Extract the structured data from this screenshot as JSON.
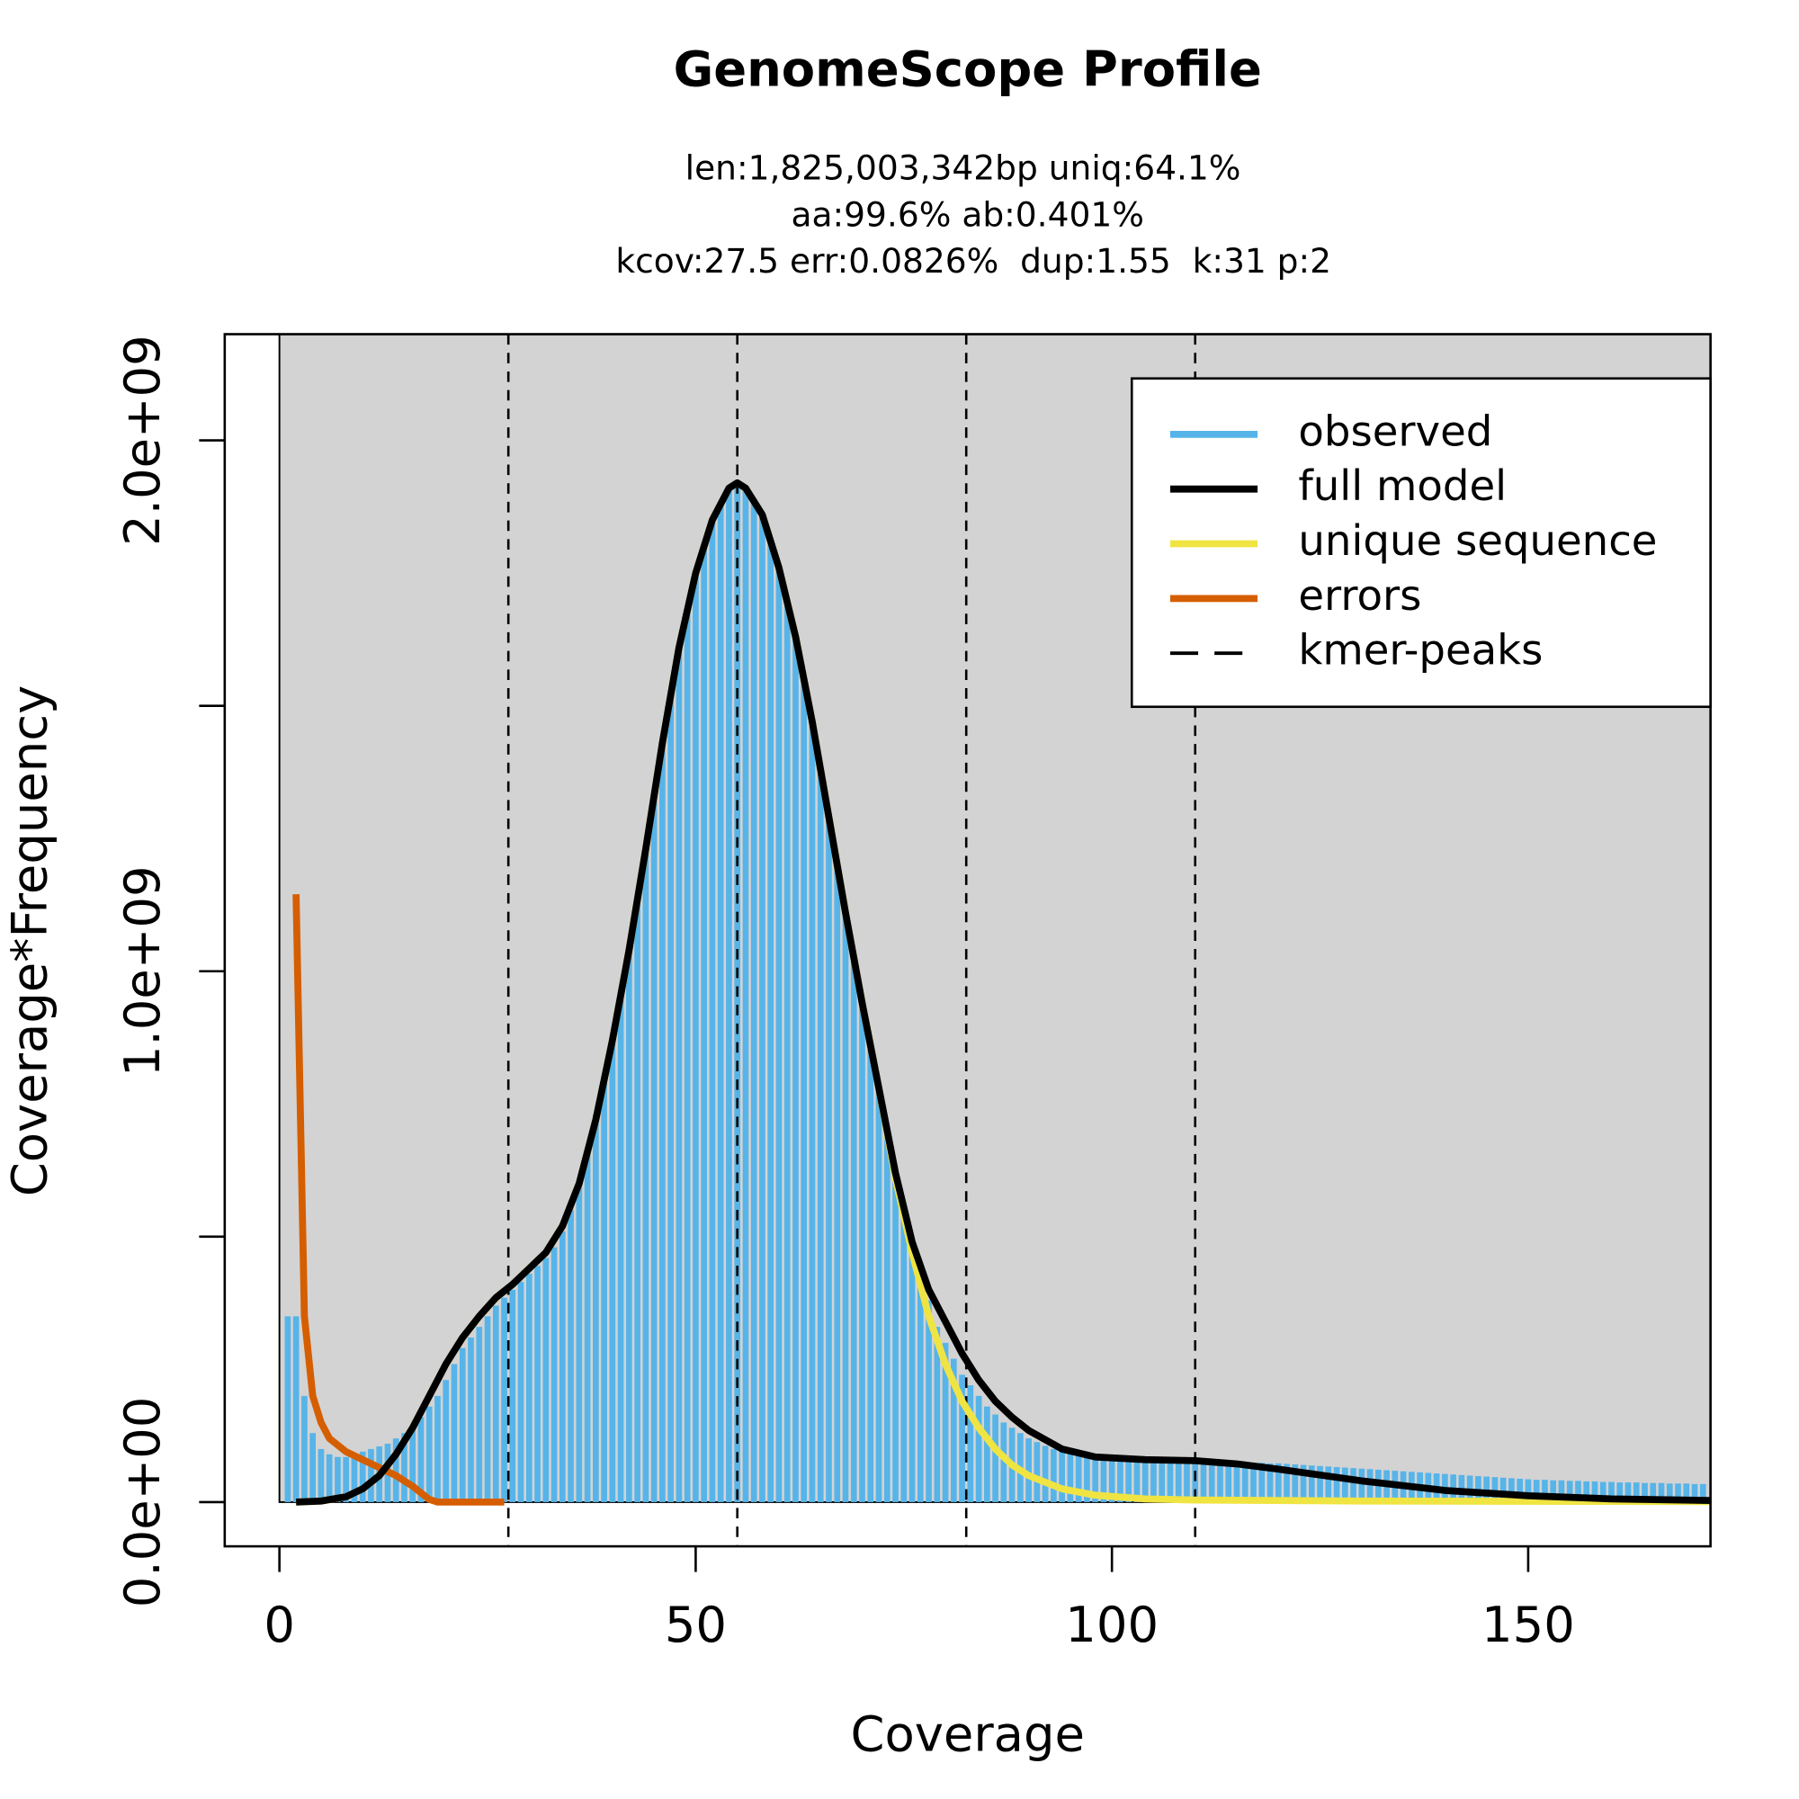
{
  "chart_data": {
    "type": "genomescope",
    "title": "GenomeScope Profile",
    "subtitle": [
      "len:1,825,003,342bp uniq:64.1%",
      "aa:99.6% ab:0.401%",
      "kcov:27.5 err:0.0826%  dup:1.55  k:31 p:2"
    ],
    "x_label": "Coverage",
    "y_label": "Coverage*Frequency",
    "xlim": [
      -6.57,
      171.9
    ],
    "ylim": [
      -83300000,
      2200000000
    ],
    "xticks": [
      0,
      50,
      100,
      150
    ],
    "yticks": [
      {
        "value": 0,
        "label": "0.0e+00"
      },
      {
        "value": 500000000,
        "label": null
      },
      {
        "value": 1000000000,
        "label": "1.0e+09"
      },
      {
        "value": 1500000000,
        "label": null
      },
      {
        "value": 2000000000,
        "label": "2.0e+09"
      }
    ],
    "background": "#d3d3d3",
    "legend": "top-right",
    "series": [
      {
        "name": "observed",
        "type": "bar",
        "color": "#56B4E9",
        "x": [
          1,
          2,
          3,
          4,
          5,
          6,
          7,
          8,
          9,
          10,
          11,
          12,
          13,
          14,
          15,
          16,
          17,
          18,
          19,
          20,
          21,
          22,
          23,
          24,
          25,
          26,
          27,
          28,
          29,
          30,
          31,
          32,
          33,
          34,
          35,
          36,
          37,
          38,
          39,
          40,
          41,
          42,
          43,
          44,
          45,
          46,
          47,
          48,
          49,
          50,
          51,
          52,
          53,
          54,
          55,
          56,
          57,
          58,
          59,
          60,
          61,
          62,
          63,
          64,
          65,
          66,
          67,
          68,
          69,
          70,
          71,
          72,
          73,
          74,
          75,
          76,
          77,
          78,
          79,
          80,
          81,
          82,
          83,
          84,
          85,
          86,
          87,
          88,
          89,
          90,
          91,
          92,
          93,
          94,
          95,
          96,
          97,
          98,
          99,
          100,
          101,
          102,
          103,
          104,
          105,
          106,
          107,
          108,
          109,
          110,
          111,
          112,
          113,
          114,
          115,
          116,
          117,
          118,
          119,
          120,
          121,
          122,
          123,
          124,
          125,
          126,
          127,
          128,
          129,
          130,
          131,
          132,
          133,
          134,
          135,
          136,
          137,
          138,
          139,
          140,
          141,
          142,
          143,
          144,
          145,
          146,
          147,
          148,
          149,
          150,
          151,
          152,
          153,
          154,
          155,
          156,
          157,
          158,
          159,
          160,
          161,
          162,
          163,
          164,
          165,
          166,
          167,
          168,
          169,
          170,
          171
        ],
        "values": [
          350000000.0,
          350000000.0,
          200000000.0,
          130000000.0,
          100000000.0,
          90000000.0,
          85000000.0,
          85000000.0,
          90000000.0,
          95000000.0,
          100000000.0,
          105000000.0,
          110000000.0,
          120000000.0,
          130000000.0,
          145000000.0,
          160000000.0,
          180000000.0,
          200000000.0,
          230000000.0,
          260000000.0,
          290000000.0,
          310000000.0,
          330000000.0,
          350000000.0,
          370000000.0,
          385000000.0,
          400000000.0,
          415000000.0,
          430000000.0,
          445000000.0,
          460000000.0,
          480000000.0,
          510000000.0,
          550000000.0,
          600000000.0,
          660000000.0,
          730000000.0,
          800000000.0,
          870000000.0,
          950000000.0,
          1040000000.0,
          1130000000.0,
          1230000000.0,
          1330000000.0,
          1430000000.0,
          1520000000.0,
          1610000000.0,
          1680000000.0,
          1750000000.0,
          1800000000.0,
          1850000000.0,
          1880000000.0,
          1910000000.0,
          1920000000.0,
          1910000000.0,
          1890000000.0,
          1860000000.0,
          1810000000.0,
          1760000000.0,
          1700000000.0,
          1630000000.0,
          1550000000.0,
          1470000000.0,
          1380000000.0,
          1290000000.0,
          1200000000.0,
          1110000000.0,
          1020000000.0,
          940000000.0,
          860000000.0,
          780000000.0,
          700000000.0,
          620000000.0,
          550000000.0,
          490000000.0,
          430000000.0,
          380000000.0,
          330000000.0,
          300000000.0,
          270000000.0,
          240000000.0,
          220000000.0,
          200000000.0,
          180000000.0,
          165000000.0,
          150000000.0,
          140000000.0,
          130000000.0,
          120000000.0,
          113000000.0,
          106000000.0,
          100000000.0,
          96000000.0,
          92000000.0,
          89000000.0,
          87000000.0,
          85000000.0,
          84000000.0,
          83000000.0,
          82000000.0,
          82000000.0,
          81000000.0,
          81000000.0,
          80000000.0,
          80000000.0,
          79000000.0,
          79000000.0,
          78000000.0,
          78000000.0,
          77000000.0,
          77000000.0,
          76000000.0,
          76000000.0,
          75000000.0,
          75000000.0,
          74000000.0,
          74000000.0,
          73000000.0,
          73000000.0,
          72000000.0,
          71000000.0,
          70000000.0,
          69000000.0,
          68000000.0,
          67000000.0,
          66000000.0,
          65000000.0,
          64000000.0,
          63000000.0,
          62000000.0,
          61000000.0,
          60000000.0,
          59000000.0,
          58000000.0,
          57000000.0,
          56000000.0,
          55000000.0,
          54000000.0,
          53000000.0,
          52000000.0,
          51000000.0,
          50000000.0,
          49000000.0,
          48000000.0,
          47000000.0,
          46000000.0,
          45000000.0,
          44000000.0,
          43000000.0,
          42000000.0,
          42000000.0,
          41000000.0,
          41000000.0,
          40000000.0,
          40000000.0,
          39000000.0,
          39000000.0,
          38000000.0,
          38000000.0,
          37000000.0,
          37000000.0,
          37000000.0,
          36000000.0,
          36000000.0,
          36000000.0,
          35000000.0,
          35000000.0,
          35000000.0,
          34000000.0,
          34000000.0
        ]
      },
      {
        "name": "full model",
        "type": "line",
        "color": "#000000",
        "x": [
          2,
          5,
          8,
          10,
          12,
          14,
          16,
          18,
          20,
          22,
          24,
          26,
          28,
          30,
          32,
          34,
          36,
          38,
          40,
          42,
          44,
          46,
          48,
          50,
          52,
          54,
          55,
          56,
          58,
          60,
          62,
          64,
          66,
          68,
          70,
          72,
          74,
          76,
          78,
          80,
          82,
          84,
          86,
          88,
          90,
          94,
          98,
          104,
          110,
          115,
          120,
          130,
          140,
          150,
          160,
          171.9
        ],
        "values": [
          0,
          2000000.0,
          10000000.0,
          25000000.0,
          50000000.0,
          90000000.0,
          140000000.0,
          200000000.0,
          260000000.0,
          310000000.0,
          350000000.0,
          385000000.0,
          410000000.0,
          440000000.0,
          470000000.0,
          520000000.0,
          600000000.0,
          720000000.0,
          870000000.0,
          1040000000.0,
          1230000000.0,
          1430000000.0,
          1610000000.0,
          1750000000.0,
          1850000000.0,
          1910000000.0,
          1920000000.0,
          1910000000.0,
          1860000000.0,
          1760000000.0,
          1630000000.0,
          1470000000.0,
          1290000000.0,
          1110000000.0,
          940000000.0,
          780000000.0,
          620000000.0,
          490000000.0,
          400000000.0,
          340000000.0,
          280000000.0,
          230000000.0,
          190000000.0,
          160000000.0,
          135000000.0,
          100000000.0,
          85000000.0,
          80000000.0,
          78000000.0,
          72000000.0,
          62000000.0,
          40000000.0,
          22000000.0,
          12000000.0,
          6000000.0,
          3000000.0
        ]
      },
      {
        "name": "unique sequence",
        "type": "line",
        "color": "#F0E442",
        "x": [
          2,
          5,
          8,
          10,
          12,
          14,
          16,
          18,
          20,
          22,
          24,
          26,
          28,
          30,
          32,
          34,
          36,
          38,
          40,
          42,
          44,
          46,
          48,
          50,
          52,
          54,
          55,
          56,
          58,
          60,
          62,
          64,
          66,
          68,
          70,
          72,
          74,
          76,
          78,
          80,
          82,
          84,
          86,
          88,
          90,
          94,
          98,
          104,
          110,
          130,
          171.9
        ],
        "values": [
          0,
          2000000.0,
          10000000.0,
          25000000.0,
          50000000.0,
          90000000.0,
          140000000.0,
          200000000.0,
          260000000.0,
          310000000.0,
          350000000.0,
          385000000.0,
          410000000.0,
          440000000.0,
          470000000.0,
          520000000.0,
          600000000.0,
          720000000.0,
          870000000.0,
          1040000000.0,
          1230000000.0,
          1430000000.0,
          1610000000.0,
          1750000000.0,
          1850000000.0,
          1910000000.0,
          1920000000.0,
          1910000000.0,
          1860000000.0,
          1760000000.0,
          1630000000.0,
          1470000000.0,
          1290000000.0,
          1110000000.0,
          940000000.0,
          780000000.0,
          610000000.0,
          470000000.0,
          350000000.0,
          260000000.0,
          190000000.0,
          140000000.0,
          100000000.0,
          70000000.0,
          50000000.0,
          25000000.0,
          13000000.0,
          6000000.0,
          4000000.0,
          2000000.0,
          1000000.0
        ]
      },
      {
        "name": "errors",
        "type": "line",
        "color": "#D55E00",
        "x": [
          2,
          3,
          4,
          5,
          6,
          8,
          10,
          12,
          14,
          16,
          18,
          19,
          27
        ],
        "values": [
          1145000000.0,
          350000000.0,
          200000000.0,
          150000000.0,
          120000000.0,
          95000000.0,
          80000000.0,
          65000000.0,
          50000000.0,
          30000000.0,
          5000000.0,
          0,
          0
        ]
      },
      {
        "name": "kmer-peaks",
        "type": "vline",
        "color": "#000000",
        "x": [
          27.5,
          55,
          82.5,
          110
        ]
      }
    ]
  }
}
